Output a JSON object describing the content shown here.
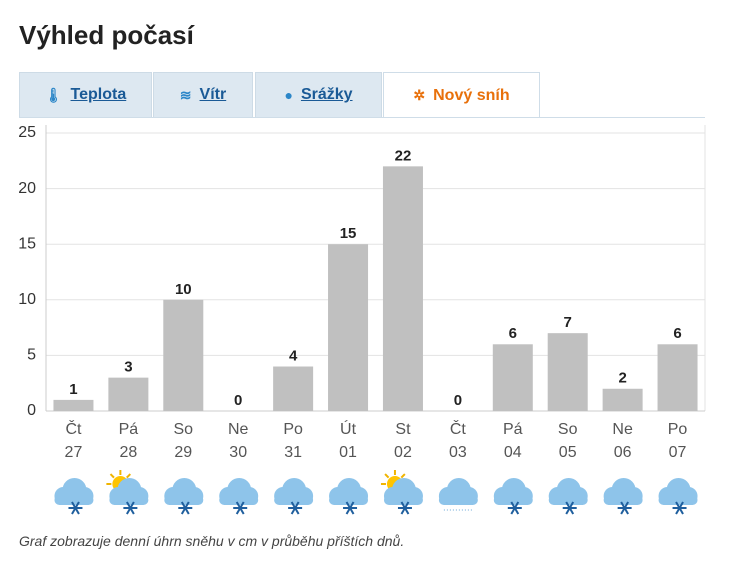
{
  "header": {
    "title": "Výhled počasí"
  },
  "tabs": [
    "Teplota",
    "Vítr",
    "Srážky",
    "Nový sníh"
  ],
  "active_tab": 3,
  "chart_data": {
    "type": "bar",
    "categories": [
      "Čt",
      "Pá",
      "So",
      "Ne",
      "Po",
      "Út",
      "St",
      "Čt",
      "Pá",
      "So",
      "Ne",
      "Po"
    ],
    "category_days": [
      "27",
      "28",
      "29",
      "30",
      "31",
      "01",
      "02",
      "03",
      "04",
      "05",
      "06",
      "07"
    ],
    "values": [
      1,
      3,
      10,
      0,
      4,
      15,
      22,
      0,
      6,
      7,
      2,
      6
    ],
    "weather_icons": [
      "snow",
      "sun-snow",
      "snow",
      "snow",
      "snow",
      "snow",
      "sun-snow",
      "cloud-light-snow",
      "snow",
      "snow",
      "snow",
      "snow"
    ],
    "color": "#c0c0c0",
    "ylim": [
      0,
      25
    ],
    "yticks": [
      0,
      5,
      10,
      15,
      20,
      25
    ],
    "grid": true
  },
  "footnote": "Graf zobrazuje denní úhrn sněhu v cm v průběhu příštích dnů."
}
